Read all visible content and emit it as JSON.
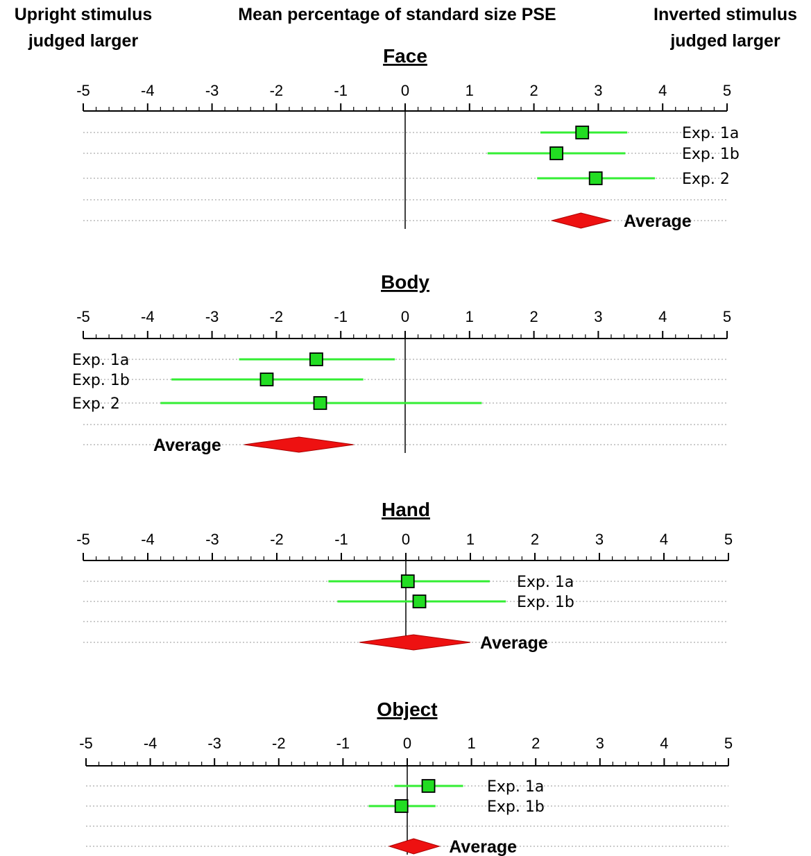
{
  "headers": {
    "left": "Upright stimulus\njudged larger",
    "center": "Mean percentage of standard size PSE",
    "right": "Inverted stimulus\njudged larger"
  },
  "colors": {
    "ci_line": "#33ee33",
    "marker_fill": "#22dd22",
    "diamond": "#ee1111",
    "axis": "#000000",
    "dotted_row": "#aaaaaa"
  },
  "chart_data": [
    {
      "type": "forest",
      "title": "Face",
      "xlim": [
        -5,
        5
      ],
      "ticks": [
        -5,
        -4,
        -3,
        -2,
        -1,
        0,
        1,
        2,
        3,
        4,
        5
      ],
      "label_side": "right",
      "rows": [
        {
          "label": "Exp. 1a",
          "value": 2.75,
          "ci": [
            2.1,
            3.45
          ]
        },
        {
          "label": "Exp. 1b",
          "value": 2.35,
          "ci": [
            1.28,
            3.42
          ]
        },
        {
          "label": "Exp. 2",
          "value": 2.96,
          "ci": [
            2.05,
            3.88
          ]
        }
      ],
      "average": {
        "label": "Average",
        "value": 2.73,
        "ci": [
          2.28,
          3.2
        ]
      }
    },
    {
      "type": "forest",
      "title": "Body",
      "xlim": [
        -5,
        5
      ],
      "ticks": [
        -5,
        -4,
        -3,
        -2,
        -1,
        0,
        1,
        2,
        3,
        4,
        5
      ],
      "label_side": "left",
      "rows": [
        {
          "label": "Exp. 1a",
          "value": -1.38,
          "ci": [
            -2.58,
            -0.16
          ]
        },
        {
          "label": "Exp. 1b",
          "value": -2.15,
          "ci": [
            -3.63,
            -0.65
          ]
        },
        {
          "label": "Exp. 2",
          "value": -1.32,
          "ci": [
            -3.8,
            1.19
          ]
        }
      ],
      "average": {
        "label": "Average",
        "value": -1.65,
        "ci": [
          -2.5,
          -0.8
        ]
      }
    },
    {
      "type": "forest",
      "title": "Hand",
      "xlim": [
        -5,
        5
      ],
      "ticks": [
        -5,
        -4,
        -3,
        -2,
        -1,
        0,
        1,
        2,
        3,
        4,
        5
      ],
      "label_side": "right",
      "rows": [
        {
          "label": "Exp. 1a",
          "value": 0.03,
          "ci": [
            -1.2,
            1.3
          ]
        },
        {
          "label": "Exp. 1b",
          "value": 0.21,
          "ci": [
            -1.06,
            1.55
          ]
        }
      ],
      "average": {
        "label": "Average",
        "value": 0.12,
        "ci": [
          -0.72,
          1.0
        ]
      }
    },
    {
      "type": "forest",
      "title": "Object",
      "xlim": [
        -5,
        5
      ],
      "ticks": [
        -5,
        -4,
        -3,
        -2,
        -1,
        0,
        1,
        2,
        3,
        4,
        5
      ],
      "label_side": "right",
      "rows": [
        {
          "label": "Exp. 1a",
          "value": 0.33,
          "ci": [
            -0.2,
            0.87
          ]
        },
        {
          "label": "Exp. 1b",
          "value": -0.09,
          "ci": [
            -0.6,
            0.44
          ]
        }
      ],
      "average": {
        "label": "Average",
        "value": 0.1,
        "ci": [
          -0.28,
          0.5
        ]
      }
    }
  ]
}
